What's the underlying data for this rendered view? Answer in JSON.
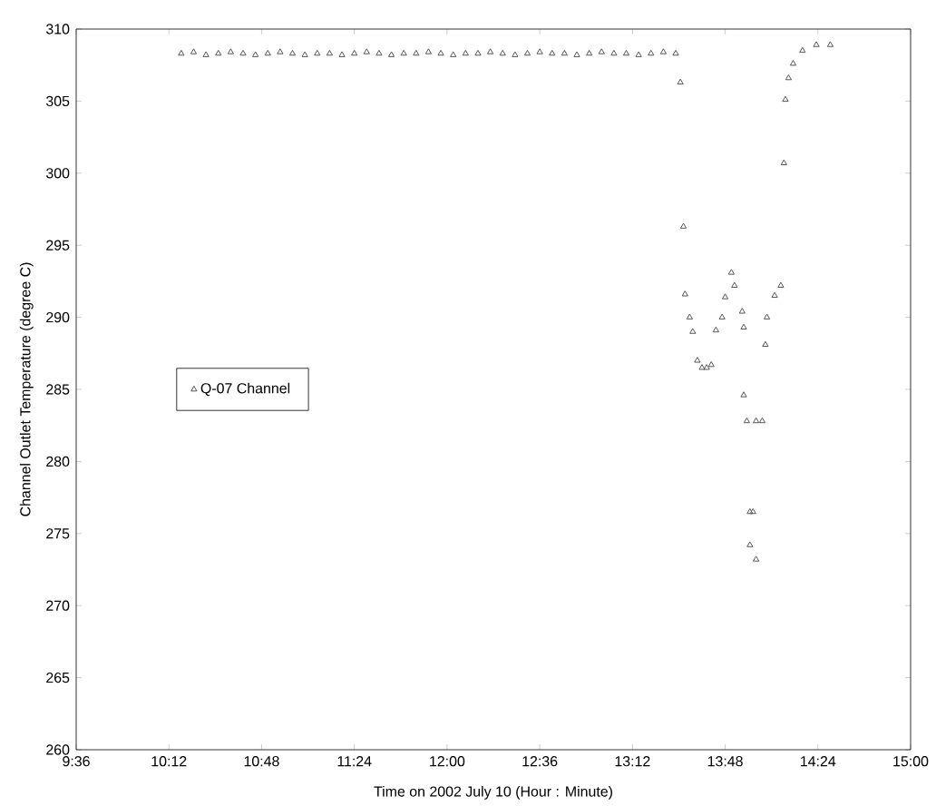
{
  "chart_data": {
    "type": "scatter",
    "xlabel": "Time on 2002 July 10 (Hour : Minute)",
    "ylabel": "Channel Outlet Temperature (degree C)",
    "xlim": [
      9.6,
      15.0
    ],
    "ylim": [
      260,
      310
    ],
    "xticks": [
      {
        "value": 9.6,
        "label": "9:36"
      },
      {
        "value": 10.2,
        "label": "10:12"
      },
      {
        "value": 10.8,
        "label": "10:48"
      },
      {
        "value": 11.4,
        "label": "11:24"
      },
      {
        "value": 12.0,
        "label": "12:00"
      },
      {
        "value": 12.6,
        "label": "12:36"
      },
      {
        "value": 13.2,
        "label": "13:12"
      },
      {
        "value": 13.8,
        "label": "13:48"
      },
      {
        "value": 14.4,
        "label": "14:24"
      },
      {
        "value": 15.0,
        "label": "15:00"
      }
    ],
    "yticks": [
      260,
      265,
      270,
      275,
      280,
      285,
      290,
      295,
      300,
      305,
      310
    ],
    "legend": "left",
    "marker": "triangle",
    "grid": false,
    "series": [
      {
        "name": "Q-07 Channel",
        "color": "#555555",
        "x": [
          10.28,
          10.36,
          10.44,
          10.52,
          10.6,
          10.68,
          10.76,
          10.84,
          10.92,
          11.0,
          11.08,
          11.16,
          11.24,
          11.32,
          11.4,
          11.48,
          11.56,
          11.64,
          11.72,
          11.8,
          11.88,
          11.96,
          12.04,
          12.12,
          12.2,
          12.28,
          12.36,
          12.44,
          12.52,
          12.6,
          12.68,
          12.76,
          12.84,
          12.92,
          13.0,
          13.08,
          13.16,
          13.24,
          13.32,
          13.4,
          13.48,
          13.51,
          13.53,
          13.54,
          13.57,
          13.59,
          13.62,
          13.65,
          13.68,
          13.71,
          13.74,
          13.78,
          13.8,
          13.84,
          13.86,
          13.91,
          13.92,
          13.92,
          13.94,
          13.96,
          13.96,
          13.98,
          14.0,
          14.0,
          14.04,
          14.06,
          14.07,
          14.12,
          14.16,
          14.18,
          14.19,
          14.21,
          14.24,
          14.3,
          14.39,
          14.48
        ],
        "values": [
          308.3,
          308.4,
          308.2,
          308.3,
          308.4,
          308.3,
          308.2,
          308.3,
          308.4,
          308.3,
          308.2,
          308.3,
          308.3,
          308.2,
          308.3,
          308.4,
          308.3,
          308.2,
          308.3,
          308.3,
          308.4,
          308.3,
          308.2,
          308.3,
          308.3,
          308.4,
          308.3,
          308.2,
          308.3,
          308.4,
          308.3,
          308.3,
          308.2,
          308.3,
          308.4,
          308.3,
          308.3,
          308.2,
          308.3,
          308.4,
          308.3,
          306.3,
          296.3,
          291.6,
          290.0,
          289.0,
          287.0,
          286.5,
          286.5,
          286.7,
          289.1,
          290.0,
          291.4,
          293.1,
          292.2,
          290.4,
          289.3,
          284.6,
          282.8,
          276.5,
          274.2,
          276.5,
          282.8,
          273.2,
          282.8,
          288.1,
          290.0,
          291.5,
          292.2,
          300.7,
          305.1,
          306.6,
          307.6,
          308.5,
          308.9,
          308.9
        ]
      }
    ]
  }
}
